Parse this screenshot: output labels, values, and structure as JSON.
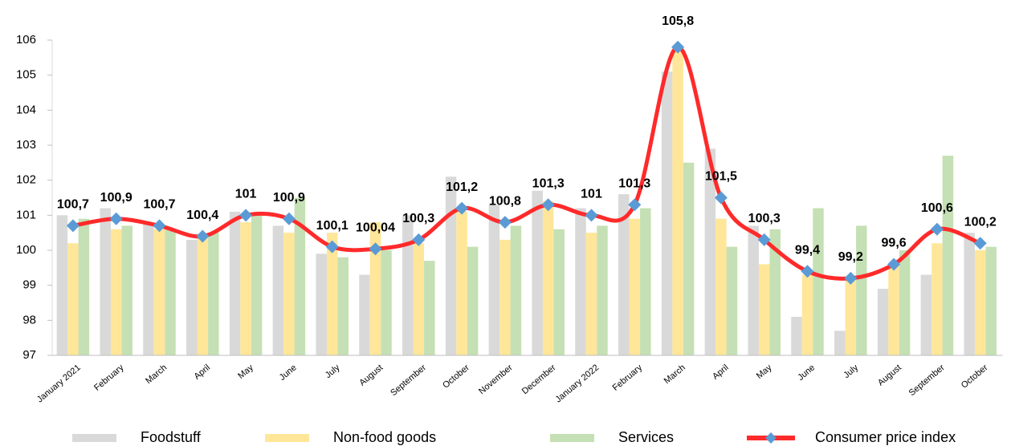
{
  "chart_data": {
    "type": "bar",
    "categories": [
      "January 2021",
      "February",
      "March",
      "April",
      "May",
      "June",
      "July",
      "August",
      "September",
      "October",
      "November",
      "December",
      "January 2022",
      "February",
      "March",
      "April",
      "May",
      "June",
      "July",
      "August",
      "September",
      "October"
    ],
    "series": [
      {
        "name": "Foodstuff",
        "color": "#d9d9d9",
        "values": [
          101.0,
          101.2,
          100.8,
          100.3,
          101.1,
          100.7,
          99.9,
          99.3,
          101.0,
          102.1,
          101.3,
          101.7,
          101.2,
          101.6,
          105.1,
          102.9,
          100.7,
          98.1,
          97.7,
          98.9,
          99.3,
          100.5
        ]
      },
      {
        "name": "Non-food goods",
        "color": "#ffe699",
        "values": [
          100.2,
          100.6,
          100.6,
          100.4,
          100.8,
          100.5,
          100.5,
          100.8,
          100.2,
          101.1,
          100.3,
          101.4,
          100.5,
          100.9,
          105.7,
          100.9,
          99.6,
          99.3,
          99.2,
          99.6,
          100.2,
          100.0
        ]
      },
      {
        "name": "Services",
        "color": "#c5e0b4",
        "values": [
          100.9,
          100.7,
          100.6,
          100.5,
          101.0,
          101.5,
          99.8,
          100.0,
          99.7,
          100.1,
          100.7,
          100.6,
          100.7,
          101.2,
          102.5,
          100.1,
          100.6,
          101.2,
          100.7,
          100.0,
          102.7,
          100.1
        ]
      },
      {
        "name": "Consumer price index",
        "type": "line",
        "color": "#ff2a2a",
        "marker_color": "#5b9bd5",
        "values": [
          100.7,
          100.9,
          100.7,
          100.4,
          101,
          100.9,
          100.1,
          100.04,
          100.3,
          101.2,
          100.8,
          101.3,
          101,
          101.3,
          105.8,
          101.5,
          100.3,
          99.4,
          99.2,
          99.6,
          100.6,
          100.2
        ],
        "value_labels": [
          "100,7",
          "100,9",
          "100,7",
          "100,4",
          "101",
          "100,9",
          "100,1",
          "100,04",
          "100,3",
          "101,2",
          "100,8",
          "101,3",
          "101",
          "101,3",
          "105,8",
          "101,5",
          "100,3",
          "99,4",
          "99,2",
          "99,6",
          "100,6",
          "100,2"
        ]
      }
    ],
    "ylim": [
      97,
      106
    ],
    "yticks": [
      97,
      98,
      99,
      100,
      101,
      102,
      103,
      104,
      105,
      106
    ],
    "grid": false,
    "legend": "bottom"
  }
}
